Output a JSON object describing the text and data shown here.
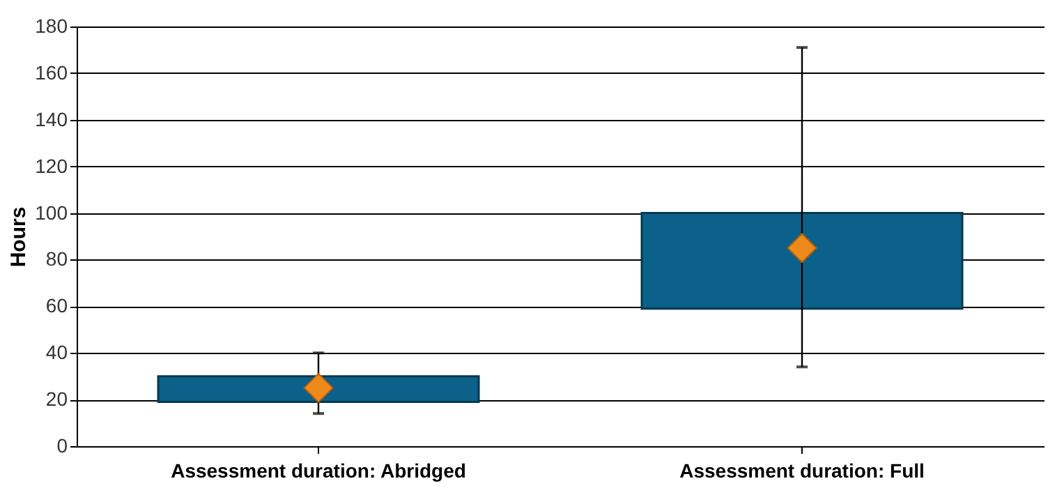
{
  "chart_data": {
    "type": "bar",
    "ylabel": "Hours",
    "categories": [
      "Assessment duration: Abridged",
      "Assessment duration: Full"
    ],
    "ylim": [
      0,
      180
    ],
    "yticks": [
      0,
      20,
      40,
      60,
      80,
      100,
      120,
      140,
      160,
      180
    ],
    "grid": "y",
    "series": [
      {
        "color": "#0b6189",
        "base": [
          19,
          59
        ],
        "values": [
          11,
          41
        ]
      },
      {
        "type": "scatter",
        "color": "#ee8a1c",
        "marker": "diamond",
        "values": [
          25,
          85
        ],
        "errors": [
          [
            14,
            40
          ],
          [
            34,
            171
          ]
        ]
      }
    ]
  }
}
